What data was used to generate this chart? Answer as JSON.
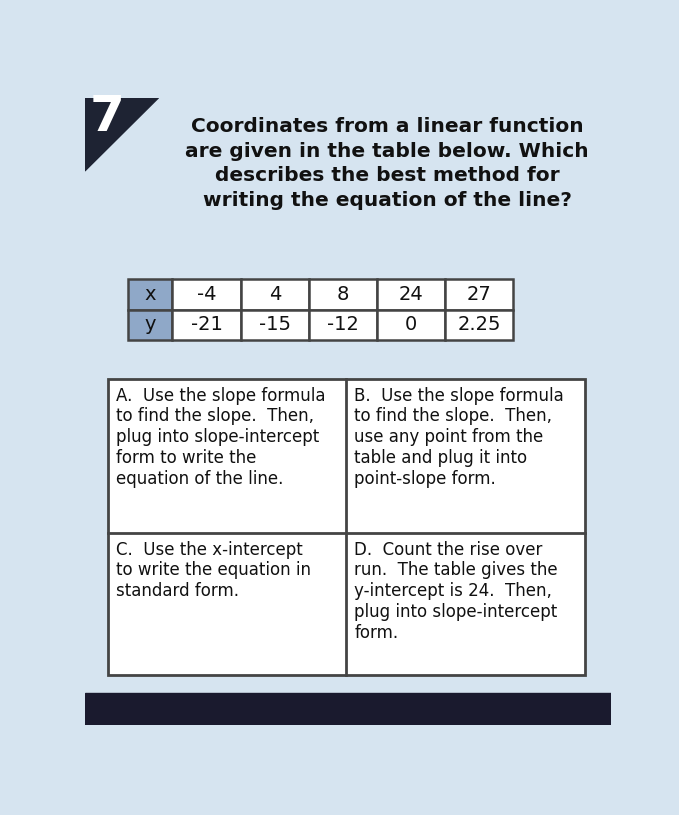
{
  "title_line1": "Coordinates from a linear function",
  "title_line2": "are given in the table below. Which",
  "title_line3": "describes the best method for",
  "title_line4": "writing the equation of the line?",
  "question_number": "7",
  "table_x_header": "x",
  "table_y_header": "y",
  "table_x_values": [
    "-4",
    "4",
    "8",
    "24",
    "27"
  ],
  "table_y_values": [
    "-21",
    "-15",
    "-12",
    "0",
    "2.25"
  ],
  "header_bg_color": "#8fa8c8",
  "table_border_color": "#444444",
  "bg_color": "#d6e4f0",
  "answer_A": "A.  Use the slope formula\nto find the slope.  Then,\nplug into slope-intercept\nform to write the\nequation of the line.",
  "answer_B": "B.  Use the slope formula\nto find the slope.  Then,\nuse any point from the\ntable and plug it into\npoint-slope form.",
  "answer_C": "C.  Use the x-intercept\nto write the equation in\nstandard form.",
  "answer_D": "D.  Count the rise over\nrun.  The table gives the\ny-intercept is 24.  Then,\nplug into slope-intercept\nform.",
  "answer_box_border": "#444444",
  "text_color": "#111111",
  "bottom_bar_color": "#1a1a2e",
  "number_bg_color": "#1e2333"
}
